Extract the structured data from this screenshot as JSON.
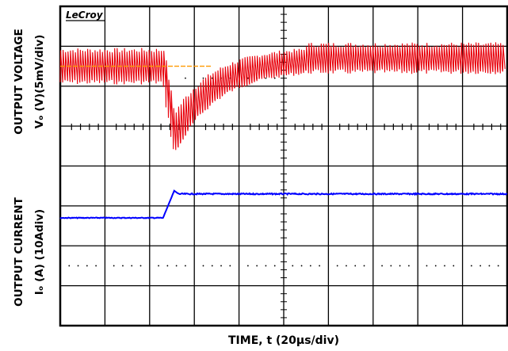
{
  "chart_data": {
    "type": "line",
    "brand": "LeCroy",
    "x_axis_label": "TIME, t (20µs/div)",
    "y_axis_labels": {
      "voltage_line1": "OUTPUT VOLTAGE",
      "voltage_line2": "Vₒ (V)(5mV/div)",
      "current_line1": "OUTPUT CURRENT",
      "current_line2": "Iₒ (A) (10Adiv)"
    },
    "grid": {
      "divisions_x": 10,
      "divisions_y": 8
    },
    "series": [
      {
        "name": "",
        "color": "#e8000b",
        "description_free": true,
        "steady_level_div": 1.5,
        "ripple_pk_div": 0.8,
        "dip_min_div": 3.8,
        "step_at_div": 2.3,
        "recovery_end_div": 5.5,
        "final_level_div": 1.3
      },
      {
        "name": "",
        "color": "#0000ff",
        "initial_level_div": 5.3,
        "final_level_div": 4.7,
        "step_at_div": 2.3,
        "rise_end_div": 2.55
      }
    ],
    "reference_marker": {
      "color": "#ff9900",
      "level_div": 1.5,
      "x_start_div": 0,
      "x_end_div": 3.4
    }
  }
}
